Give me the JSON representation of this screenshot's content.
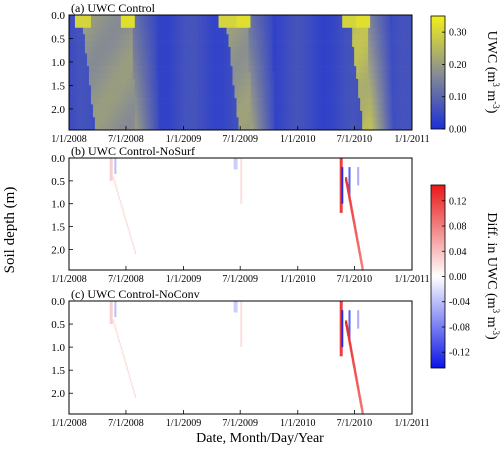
{
  "figure": {
    "ylabel_shared": "Soil depth (m)",
    "xlabel_shared": "Date, Month/Day/Year"
  },
  "chart_data": [
    {
      "type": "heatmap",
      "title": "(a) UWC Control",
      "x_ticks": [
        "1/1/2008",
        "7/1/2008",
        "1/1/2009",
        "7/1/2009",
        "1/1/2010",
        "7/1/2010",
        "1/1/2011"
      ],
      "y_ticks": [
        "0.0",
        "0.5",
        "1.0",
        "1.5",
        "2.0"
      ],
      "ylim": [
        0,
        2.45
      ],
      "y_inverted": true,
      "colorbar": {
        "label_main": "UWC (m",
        "label_sup1": "3",
        "label_mid": " m",
        "label_sup2": "-3",
        "label_end": ")",
        "ticks": [
          "0.00",
          "0.10",
          "0.20",
          "0.30"
        ],
        "range": [
          0,
          0.35
        ],
        "colors": [
          "#1b2fd6",
          "#8a8f90",
          "#f2f01a"
        ]
      },
      "wet_periods": [
        {
          "start": "2/10/2008",
          "end": "7/20/2008",
          "value": 0.2
        },
        {
          "start": "5/15/2009",
          "end": "7/25/2009",
          "value": 0.21
        },
        {
          "start": "6/15/2010",
          "end": "8/10/2010",
          "value": 0.27
        }
      ]
    },
    {
      "type": "heatmap",
      "title": "(b) UWC Control-NoSurf",
      "x_ticks": [
        "1/1/2008",
        "7/1/2008",
        "1/1/2009",
        "7/1/2009",
        "1/1/2010",
        "7/1/2010",
        "1/1/2011"
      ],
      "y_ticks": [
        "0.0",
        "0.5",
        "1.0",
        "1.5",
        "2.0"
      ],
      "ylim": [
        0,
        2.45
      ],
      "y_inverted": true
    },
    {
      "type": "heatmap",
      "title": "(c) UWC Control-NoConv",
      "x_ticks": [
        "1/1/2008",
        "7/1/2008",
        "1/1/2009",
        "7/1/2009",
        "1/1/2010",
        "7/1/2010",
        "1/1/2011"
      ],
      "y_ticks": [
        "0.0",
        "0.5",
        "1.0",
        "1.5",
        "2.0"
      ],
      "ylim": [
        0,
        2.45
      ],
      "y_inverted": true,
      "colorbar_shared_bc": {
        "label_main": "Diff. in UWC (m",
        "label_sup1": "3",
        "label_mid": " m",
        "label_sup2": "-3",
        "label_end": ")",
        "ticks": [
          "0.12",
          "0.08",
          "0.04",
          "0.00",
          "-0.04",
          "-0.08",
          "-0.12"
        ],
        "range": [
          -0.145,
          0.145
        ],
        "colors": [
          "#0a14e6",
          "#ffffff",
          "#e81818"
        ]
      }
    }
  ]
}
